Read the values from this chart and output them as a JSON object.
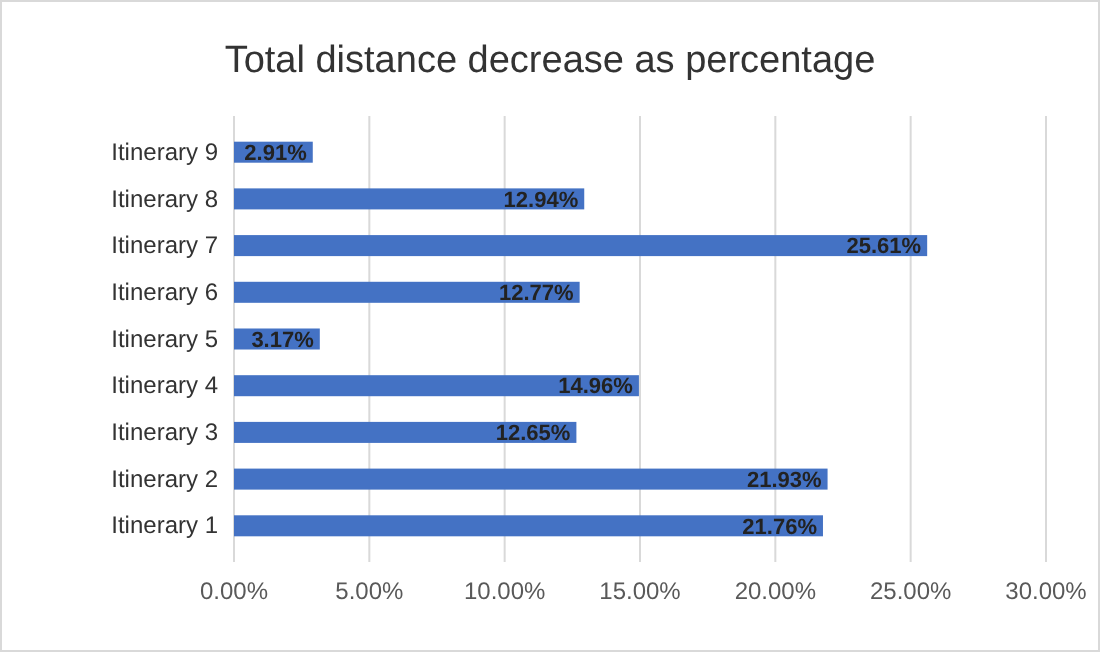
{
  "chart_data": {
    "type": "bar",
    "orientation": "horizontal",
    "title": "Total distance decrease as percentage",
    "categories": [
      "Itinerary 9",
      "Itinerary 8",
      "Itinerary 7",
      "Itinerary 6",
      "Itinerary 5",
      "Itinerary 4",
      "Itinerary 3",
      "Itinerary 2",
      "Itinerary 1"
    ],
    "values": [
      2.91,
      12.94,
      25.61,
      12.77,
      3.17,
      14.96,
      12.65,
      21.93,
      21.76
    ],
    "value_labels": [
      "2.91%",
      "12.94%",
      "25.61%",
      "12.77%",
      "3.17%",
      "14.96%",
      "12.65%",
      "21.93%",
      "21.76%"
    ],
    "color": "#4472c4",
    "xlim": [
      0,
      30
    ],
    "xticks": [
      {
        "value": 0,
        "label": "0.00%"
      },
      {
        "value": 5,
        "label": "5.00%"
      },
      {
        "value": 10,
        "label": "10.00%"
      },
      {
        "value": 15,
        "label": "15.00%"
      },
      {
        "value": 20,
        "label": "20.00%"
      },
      {
        "value": 25,
        "label": "25.00%"
      },
      {
        "value": 30,
        "label": "30.00%"
      }
    ],
    "grid": "x"
  }
}
